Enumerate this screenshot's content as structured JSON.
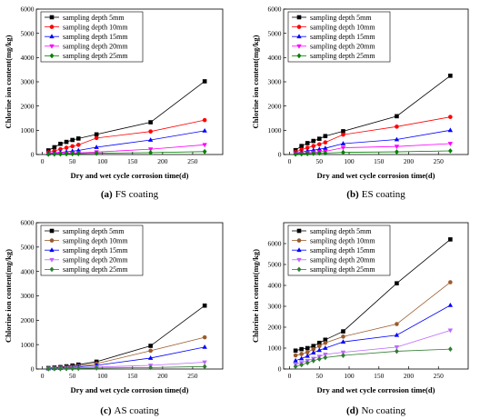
{
  "chart_data": [
    {
      "type": "line",
      "panel_label": "(a)",
      "caption": "FS coating",
      "xlabel": "Dry and wet cycle corrosion time(d)",
      "ylabel": "Chlorine ion content(mg/kg)",
      "xlim": [
        -10,
        300
      ],
      "xticks": [
        0,
        50,
        100,
        150,
        200,
        250
      ],
      "ylim": [
        0,
        6000
      ],
      "yticks": [
        0,
        1000,
        2000,
        3000,
        4000,
        5000,
        6000
      ],
      "grid": false,
      "legend": "top-left",
      "x": [
        10,
        20,
        30,
        40,
        50,
        60,
        90,
        180,
        270
      ],
      "series": [
        {
          "name": "sampling depth 5mm",
          "color": "#000000",
          "marker": "square",
          "values": [
            170,
            300,
            440,
            520,
            600,
            660,
            830,
            1330,
            3020
          ]
        },
        {
          "name": "sampling depth 10mm",
          "color": "#ff0000",
          "marker": "circle",
          "values": [
            90,
            150,
            220,
            280,
            340,
            400,
            680,
            950,
            1420
          ]
        },
        {
          "name": "sampling depth 15mm",
          "color": "#0000ff",
          "marker": "triangle-up",
          "values": [
            40,
            60,
            90,
            110,
            140,
            170,
            300,
            600,
            980
          ]
        },
        {
          "name": "sampling depth 20mm",
          "color": "#ff00ff",
          "marker": "triangle-down",
          "values": [
            20,
            30,
            40,
            50,
            60,
            70,
            100,
            220,
            400
          ]
        },
        {
          "name": "sampling depth 25mm",
          "color": "#008000",
          "marker": "diamond",
          "values": [
            10,
            15,
            20,
            25,
            30,
            35,
            50,
            80,
            120
          ]
        }
      ]
    },
    {
      "type": "line",
      "panel_label": "(b)",
      "caption": "ES coating",
      "xlabel": "Dry and wet cycle corrosion time(d)",
      "ylabel": "Chlorine ion content(mg/kg)",
      "xlim": [
        -10,
        300
      ],
      "xticks": [
        0,
        50,
        100,
        150,
        200,
        250
      ],
      "ylim": [
        0,
        6000
      ],
      "yticks": [
        0,
        1000,
        2000,
        3000,
        4000,
        5000,
        6000
      ],
      "grid": false,
      "legend": "top-left",
      "x": [
        10,
        20,
        30,
        40,
        50,
        60,
        90,
        180,
        270
      ],
      "series": [
        {
          "name": "sampling depth 5mm",
          "color": "#000000",
          "marker": "square",
          "values": [
            180,
            350,
            470,
            560,
            650,
            760,
            960,
            1580,
            3250
          ]
        },
        {
          "name": "sampling depth 10mm",
          "color": "#ff0000",
          "marker": "circle",
          "values": [
            100,
            200,
            280,
            350,
            420,
            500,
            820,
            1150,
            1550
          ]
        },
        {
          "name": "sampling depth 15mm",
          "color": "#0000ff",
          "marker": "triangle-up",
          "values": [
            50,
            100,
            150,
            180,
            220,
            260,
            450,
            620,
            1000
          ]
        },
        {
          "name": "sampling depth 20mm",
          "color": "#ff00ff",
          "marker": "triangle-down",
          "values": [
            30,
            50,
            70,
            90,
            110,
            130,
            280,
            330,
            450
          ]
        },
        {
          "name": "sampling depth 25mm",
          "color": "#008000",
          "marker": "diamond",
          "values": [
            15,
            25,
            35,
            45,
            55,
            60,
            90,
            110,
            150
          ]
        }
      ]
    },
    {
      "type": "line",
      "panel_label": "(c)",
      "caption": "AS coating",
      "xlabel": "Dry and wet cycle corrosion time(d)",
      "ylabel": "Chlorine ion content(mg/kg)",
      "xlim": [
        -10,
        300
      ],
      "xticks": [
        0,
        50,
        100,
        150,
        200,
        250
      ],
      "ylim": [
        0,
        6000
      ],
      "yticks": [
        0,
        1000,
        2000,
        3000,
        4000,
        5000,
        6000
      ],
      "grid": false,
      "legend": "top-left",
      "x": [
        10,
        20,
        30,
        40,
        50,
        60,
        90,
        180,
        270
      ],
      "series": [
        {
          "name": "sampling depth 5mm",
          "color": "#000000",
          "marker": "square",
          "values": [
            40,
            60,
            80,
            110,
            140,
            180,
            300,
            950,
            2600
          ]
        },
        {
          "name": "sampling depth 10mm",
          "color": "#9c5a2b",
          "marker": "circle",
          "values": [
            30,
            45,
            60,
            80,
            100,
            130,
            220,
            750,
            1300
          ]
        },
        {
          "name": "sampling depth 15mm",
          "color": "#0000ff",
          "marker": "triangle-up",
          "values": [
            20,
            30,
            40,
            55,
            70,
            90,
            150,
            450,
            900
          ]
        },
        {
          "name": "sampling depth 20mm",
          "color": "#bb66ff",
          "marker": "triangle-down",
          "values": [
            10,
            15,
            20,
            30,
            40,
            50,
            80,
            150,
            280
          ]
        },
        {
          "name": "sampling depth 25mm",
          "color": "#2f7d32",
          "marker": "diamond",
          "values": [
            5,
            8,
            10,
            15,
            20,
            25,
            40,
            60,
            100
          ]
        }
      ]
    },
    {
      "type": "line",
      "panel_label": "(d)",
      "caption": "No coating",
      "xlabel": "Dry and wet cycle corrosion time(d)",
      "ylabel": "Chlorine ion content(mg/kg)",
      "xlim": [
        -10,
        300
      ],
      "xticks": [
        0,
        50,
        100,
        150,
        200,
        250
      ],
      "ylim": [
        0,
        7000
      ],
      "yticks": [
        0,
        1000,
        2000,
        3000,
        4000,
        5000,
        6000
      ],
      "grid": false,
      "legend": "top-left",
      "x": [
        10,
        20,
        30,
        40,
        50,
        60,
        90,
        180,
        270
      ],
      "series": [
        {
          "name": "sampling depth 5mm",
          "color": "#000000",
          "marker": "square",
          "values": [
            880,
            950,
            1000,
            1100,
            1250,
            1400,
            1800,
            4100,
            6200
          ]
        },
        {
          "name": "sampling depth 10mm",
          "color": "#9c5a2b",
          "marker": "circle",
          "values": [
            650,
            720,
            800,
            950,
            1100,
            1250,
            1550,
            2150,
            4150
          ]
        },
        {
          "name": "sampling depth 15mm",
          "color": "#0000ff",
          "marker": "triangle-up",
          "values": [
            400,
            500,
            620,
            780,
            900,
            1000,
            1300,
            1620,
            3050
          ]
        },
        {
          "name": "sampling depth 20mm",
          "color": "#bb66ff",
          "marker": "triangle-down",
          "values": [
            220,
            300,
            400,
            500,
            600,
            700,
            800,
            1050,
            1850
          ]
        },
        {
          "name": "sampling depth 25mm",
          "color": "#2f7d32",
          "marker": "diamond",
          "values": [
            120,
            200,
            300,
            400,
            480,
            550,
            650,
            850,
            950
          ]
        }
      ]
    }
  ]
}
